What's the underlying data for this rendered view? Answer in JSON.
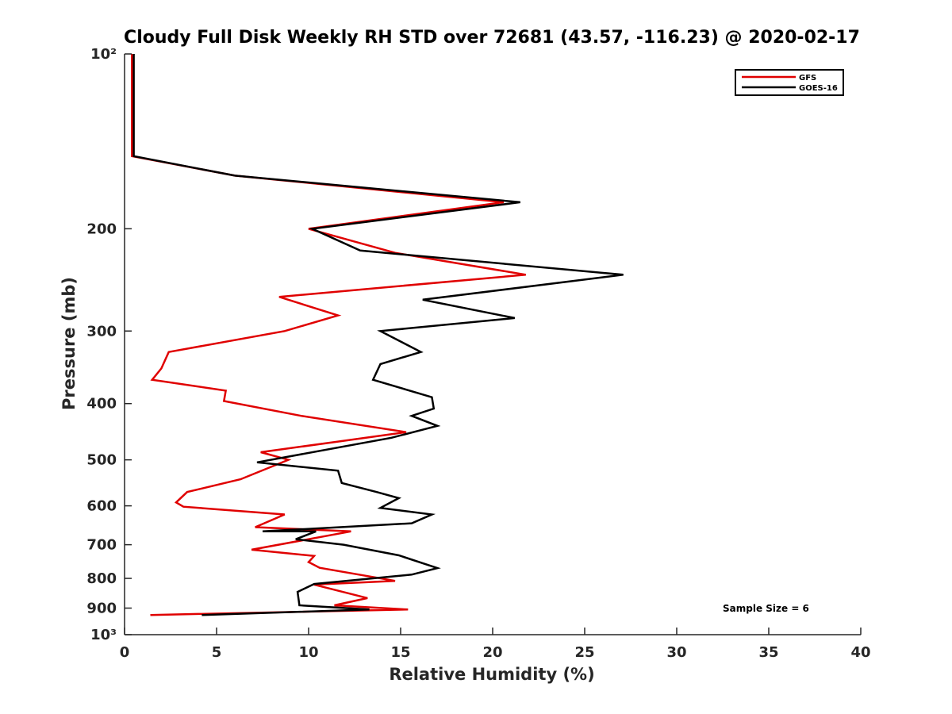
{
  "chart_data": {
    "type": "line",
    "title": "Cloudy Full Disk Weekly RH STD over 72681 (43.57, -116.23) @ 2020-02-17",
    "xlabel": "Relative Humidity (%)",
    "ylabel": "Pressure (mb)",
    "xlim": [
      0,
      40
    ],
    "ylim": [
      100,
      1000
    ],
    "y_scale": "log",
    "y_reversed": true,
    "x_ticks": [
      0,
      5,
      10,
      15,
      20,
      25,
      30,
      35,
      40
    ],
    "x_tick_labels": [
      "0",
      "5",
      "10",
      "15",
      "20",
      "25",
      "30",
      "35",
      "40"
    ],
    "y_ticks": [
      100,
      200,
      300,
      400,
      500,
      600,
      700,
      800,
      900,
      1000
    ],
    "y_tick_labels": [
      "10²",
      "200",
      "300",
      "400",
      "500",
      "600",
      "700",
      "800",
      "900",
      "10³"
    ],
    "grid": false,
    "legend_position": "top-right",
    "annotation": "Sample Size = 6",
    "series": [
      {
        "name": "GFS",
        "color": "#e00000",
        "points": [
          [
            0.4,
            100
          ],
          [
            0.4,
            125
          ],
          [
            0.4,
            150
          ],
          [
            6.0,
            162
          ],
          [
            20.6,
            180
          ],
          [
            10.0,
            200
          ],
          [
            14.7,
            220
          ],
          [
            21.8,
            240
          ],
          [
            8.4,
            262
          ],
          [
            11.6,
            282
          ],
          [
            8.7,
            300
          ],
          [
            2.4,
            326
          ],
          [
            2.0,
            348
          ],
          [
            1.5,
            364
          ],
          [
            5.5,
            380
          ],
          [
            5.4,
            396
          ],
          [
            9.6,
            420
          ],
          [
            15.3,
            448
          ],
          [
            11.6,
            465
          ],
          [
            7.4,
            485
          ],
          [
            8.9,
            500
          ],
          [
            6.3,
            540
          ],
          [
            3.4,
            568
          ],
          [
            2.8,
            592
          ],
          [
            3.2,
            602
          ],
          [
            8.7,
            621
          ],
          [
            7.1,
            653
          ],
          [
            12.3,
            664
          ],
          [
            6.9,
            714
          ],
          [
            10.3,
            732
          ],
          [
            10.0,
            750
          ],
          [
            10.6,
            767
          ],
          [
            14.7,
            808
          ],
          [
            10.3,
            820
          ],
          [
            13.2,
            865
          ],
          [
            11.4,
            890
          ],
          [
            15.4,
            905
          ],
          [
            1.4,
            925
          ]
        ]
      },
      {
        "name": "GOES-16",
        "color": "#000000",
        "points": [
          [
            0.5,
            100
          ],
          [
            0.5,
            125
          ],
          [
            0.5,
            150
          ],
          [
            6.0,
            162
          ],
          [
            21.5,
            180
          ],
          [
            10.2,
            200
          ],
          [
            12.8,
            218
          ],
          [
            27.1,
            240
          ],
          [
            16.2,
            265
          ],
          [
            21.2,
            285
          ],
          [
            13.9,
            300
          ],
          [
            16.1,
            326
          ],
          [
            13.9,
            342
          ],
          [
            13.5,
            364
          ],
          [
            16.7,
            390
          ],
          [
            16.8,
            408
          ],
          [
            15.6,
            420
          ],
          [
            17.0,
            437
          ],
          [
            14.5,
            458
          ],
          [
            7.2,
            505
          ],
          [
            11.6,
            522
          ],
          [
            11.8,
            548
          ],
          [
            13.7,
            568
          ],
          [
            14.9,
            582
          ],
          [
            13.9,
            605
          ],
          [
            16.7,
            621
          ],
          [
            15.6,
            643
          ],
          [
            7.5,
            664
          ],
          [
            10.4,
            664
          ],
          [
            9.3,
            685
          ],
          [
            11.9,
            700
          ],
          [
            14.9,
            730
          ],
          [
            17.0,
            768
          ],
          [
            15.6,
            788
          ],
          [
            10.3,
            818
          ],
          [
            9.4,
            844
          ],
          [
            9.5,
            890
          ],
          [
            13.3,
            905
          ],
          [
            4.2,
            925
          ]
        ]
      }
    ]
  }
}
